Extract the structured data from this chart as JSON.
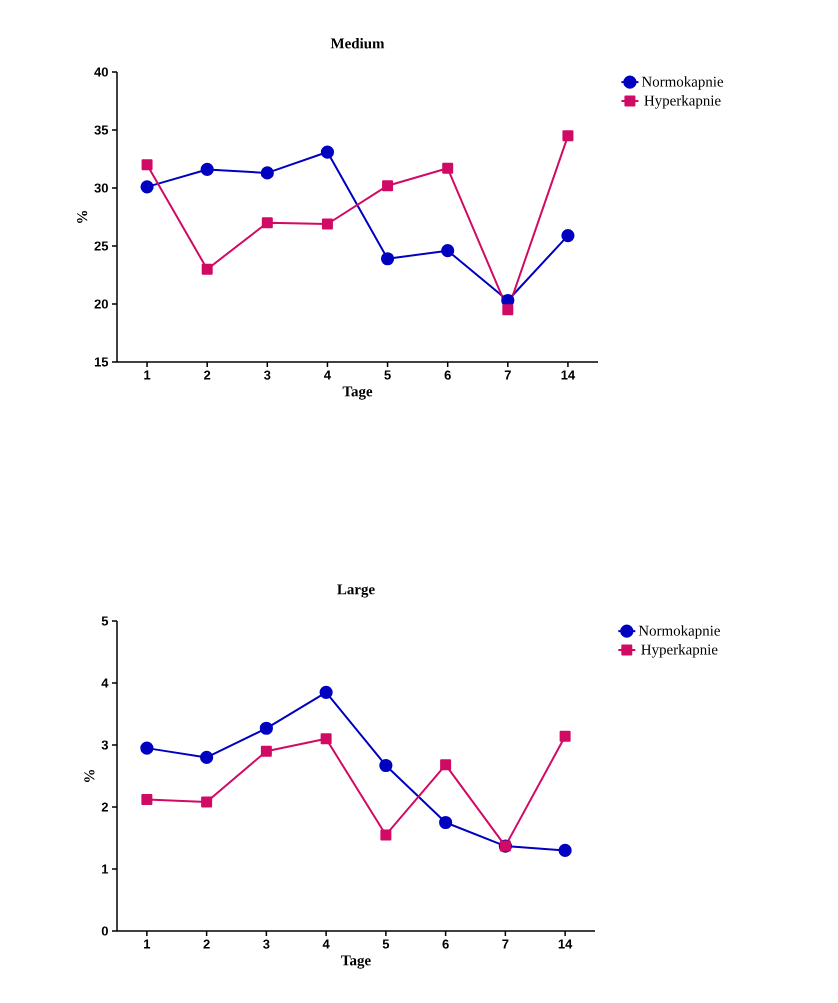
{
  "chart_data": [
    {
      "type": "line",
      "title": "Medium",
      "xlabel": "Tage",
      "ylabel": "%",
      "categories": [
        "1",
        "2",
        "3",
        "4",
        "5",
        "6",
        "7",
        "14"
      ],
      "ylim": [
        15,
        40
      ],
      "yticks": [
        15,
        20,
        25,
        30,
        35,
        40
      ],
      "legend": "right",
      "grid": false,
      "line_style": "solid",
      "series": [
        {
          "name": "Normokapnie",
          "color": "#0000c0",
          "marker": "circle",
          "values": [
            30.1,
            31.6,
            31.3,
            33.1,
            23.9,
            24.6,
            20.3,
            25.9
          ]
        },
        {
          "name": "Hyperkapnie",
          "color": "#d10a64",
          "marker": "square",
          "values": [
            32.0,
            23.0,
            27.0,
            26.9,
            30.2,
            31.7,
            19.5,
            34.5
          ]
        }
      ]
    },
    {
      "type": "line",
      "title": "Large",
      "xlabel": "Tage",
      "ylabel": "%",
      "categories": [
        "1",
        "2",
        "3",
        "4",
        "5",
        "6",
        "7",
        "14"
      ],
      "ylim": [
        0,
        5
      ],
      "yticks": [
        0,
        1,
        2,
        3,
        4,
        5
      ],
      "legend": "right",
      "grid": false,
      "line_style": "solid",
      "series": [
        {
          "name": "Normokapnie",
          "color": "#0000c0",
          "marker": "circle",
          "values": [
            2.95,
            2.8,
            3.27,
            3.85,
            2.67,
            1.75,
            1.37,
            1.3
          ]
        },
        {
          "name": "Hyperkapnie",
          "color": "#d10a64",
          "marker": "square",
          "values": [
            2.12,
            2.08,
            2.9,
            3.1,
            1.55,
            2.68,
            1.37,
            3.14
          ]
        }
      ]
    }
  ]
}
